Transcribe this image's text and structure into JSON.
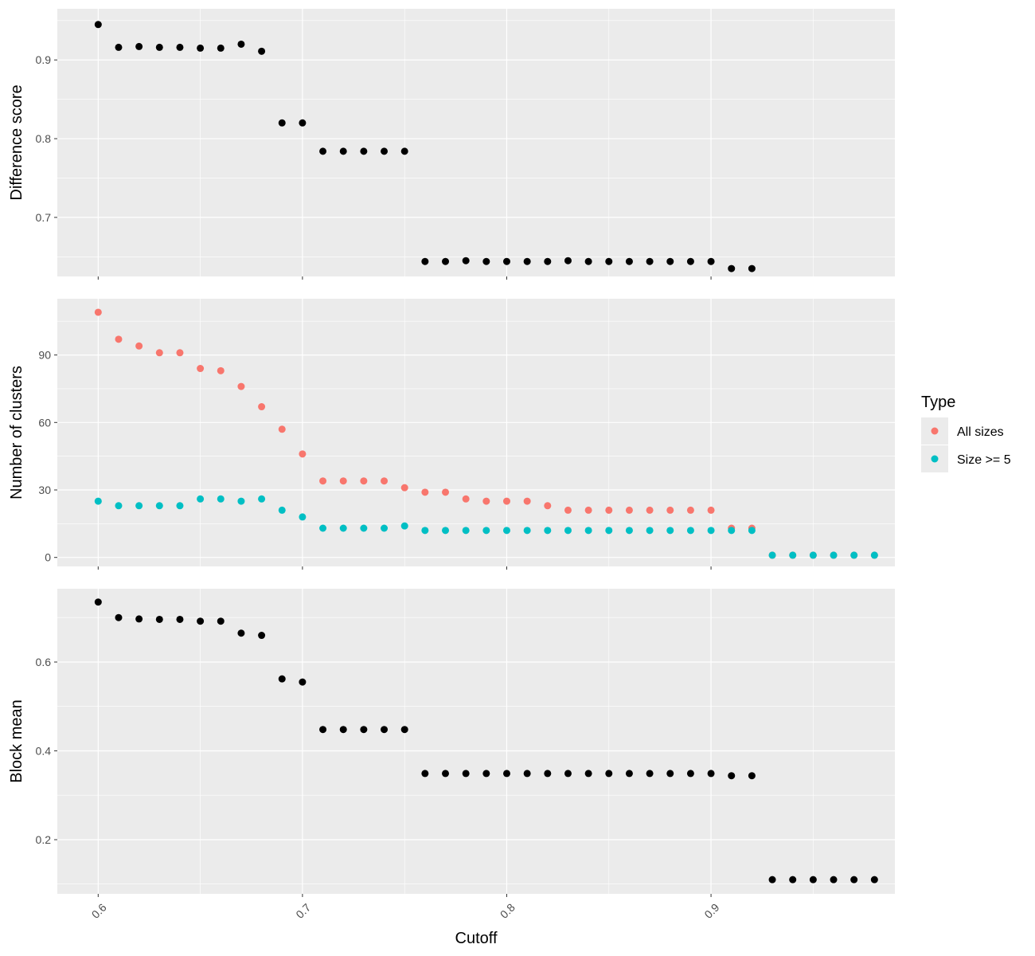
{
  "chart_data": {
    "type": "scatter",
    "x_label": "Cutoff",
    "x_range": [
      0.58,
      0.99
    ],
    "x_ticks": [
      "0.6",
      "0.7",
      "0.8",
      "0.9"
    ],
    "x_tick_values": [
      0.6,
      0.7,
      0.8,
      0.9
    ],
    "grid": true,
    "legend": {
      "title": "Type",
      "placement": "right",
      "entries": [
        {
          "label": "All sizes",
          "color": "#F8766D"
        },
        {
          "label": "Size >= 5",
          "color": "#00BFC4"
        }
      ]
    },
    "panels": [
      {
        "ylabel": "Difference score",
        "ylim": [
          0.625,
          0.965
        ],
        "y_ticks": [
          "0.7",
          "0.8",
          "0.9"
        ],
        "y_tick_values": [
          0.7,
          0.8,
          0.9
        ],
        "series": [
          {
            "color": "#000000",
            "x": [
              0.6,
              0.61,
              0.62,
              0.63,
              0.64,
              0.65,
              0.66,
              0.67,
              0.68,
              0.69,
              0.7,
              0.71,
              0.72,
              0.73,
              0.74,
              0.75,
              0.76,
              0.77,
              0.78,
              0.79,
              0.8,
              0.81,
              0.82,
              0.83,
              0.84,
              0.85,
              0.86,
              0.87,
              0.88,
              0.89,
              0.9,
              0.91,
              0.92
            ],
            "y": [
              0.945,
              0.916,
              0.917,
              0.916,
              0.916,
              0.915,
              0.915,
              0.92,
              0.911,
              0.82,
              0.82,
              0.784,
              0.784,
              0.784,
              0.784,
              0.784,
              0.644,
              0.644,
              0.645,
              0.644,
              0.644,
              0.644,
              0.644,
              0.645,
              0.644,
              0.644,
              0.644,
              0.644,
              0.644,
              0.644,
              0.644,
              0.635,
              0.635
            ]
          }
        ]
      },
      {
        "ylabel": "Number of clusters",
        "ylim": [
          -4,
          115
        ],
        "y_ticks": [
          "0",
          "30",
          "60",
          "90"
        ],
        "y_tick_values": [
          0,
          30,
          60,
          90
        ],
        "series": [
          {
            "name": "All sizes",
            "color": "#F8766D",
            "x": [
              0.6,
              0.61,
              0.62,
              0.63,
              0.64,
              0.65,
              0.66,
              0.67,
              0.68,
              0.69,
              0.7,
              0.71,
              0.72,
              0.73,
              0.74,
              0.75,
              0.76,
              0.77,
              0.78,
              0.79,
              0.8,
              0.81,
              0.82,
              0.83,
              0.84,
              0.85,
              0.86,
              0.87,
              0.88,
              0.89,
              0.9,
              0.91,
              0.92,
              0.93,
              0.94,
              0.95,
              0.96,
              0.97,
              0.98
            ],
            "y": [
              109,
              97,
              94,
              91,
              91,
              84,
              83,
              76,
              67,
              57,
              46,
              34,
              34,
              34,
              34,
              31,
              29,
              29,
              26,
              25,
              25,
              25,
              23,
              21,
              21,
              21,
              21,
              21,
              21,
              21,
              21,
              13,
              13,
              1,
              1,
              1,
              1,
              1,
              1
            ]
          },
          {
            "name": "Size >= 5",
            "color": "#00BFC4",
            "x": [
              0.6,
              0.61,
              0.62,
              0.63,
              0.64,
              0.65,
              0.66,
              0.67,
              0.68,
              0.69,
              0.7,
              0.71,
              0.72,
              0.73,
              0.74,
              0.75,
              0.76,
              0.77,
              0.78,
              0.79,
              0.8,
              0.81,
              0.82,
              0.83,
              0.84,
              0.85,
              0.86,
              0.87,
              0.88,
              0.89,
              0.9,
              0.91,
              0.92,
              0.93,
              0.94,
              0.95,
              0.96,
              0.97,
              0.98
            ],
            "y": [
              25,
              23,
              23,
              23,
              23,
              26,
              26,
              25,
              26,
              21,
              18,
              13,
              13,
              13,
              13,
              14,
              12,
              12,
              12,
              12,
              12,
              12,
              12,
              12,
              12,
              12,
              12,
              12,
              12,
              12,
              12,
              12,
              12,
              1,
              1,
              1,
              1,
              1,
              1
            ]
          }
        ]
      },
      {
        "ylabel": "Block mean",
        "ylim": [
          0.078,
          0.765
        ],
        "y_ticks": [
          "0.2",
          "0.4",
          "0.6"
        ],
        "y_tick_values": [
          0.2,
          0.4,
          0.6
        ],
        "series": [
          {
            "color": "#000000",
            "x": [
              0.6,
              0.61,
              0.62,
              0.63,
              0.64,
              0.65,
              0.66,
              0.67,
              0.68,
              0.69,
              0.7,
              0.71,
              0.72,
              0.73,
              0.74,
              0.75,
              0.76,
              0.77,
              0.78,
              0.79,
              0.8,
              0.81,
              0.82,
              0.83,
              0.84,
              0.85,
              0.86,
              0.87,
              0.88,
              0.89,
              0.9,
              0.91,
              0.92,
              0.93,
              0.94,
              0.95,
              0.96,
              0.97,
              0.98
            ],
            "y": [
              0.735,
              0.7,
              0.697,
              0.696,
              0.696,
              0.692,
              0.692,
              0.665,
              0.66,
              0.562,
              0.555,
              0.448,
              0.448,
              0.448,
              0.448,
              0.448,
              0.349,
              0.349,
              0.349,
              0.349,
              0.349,
              0.349,
              0.349,
              0.349,
              0.349,
              0.349,
              0.349,
              0.349,
              0.349,
              0.349,
              0.349,
              0.344,
              0.344,
              0.11,
              0.11,
              0.11,
              0.11,
              0.11,
              0.11
            ]
          }
        ]
      }
    ]
  }
}
